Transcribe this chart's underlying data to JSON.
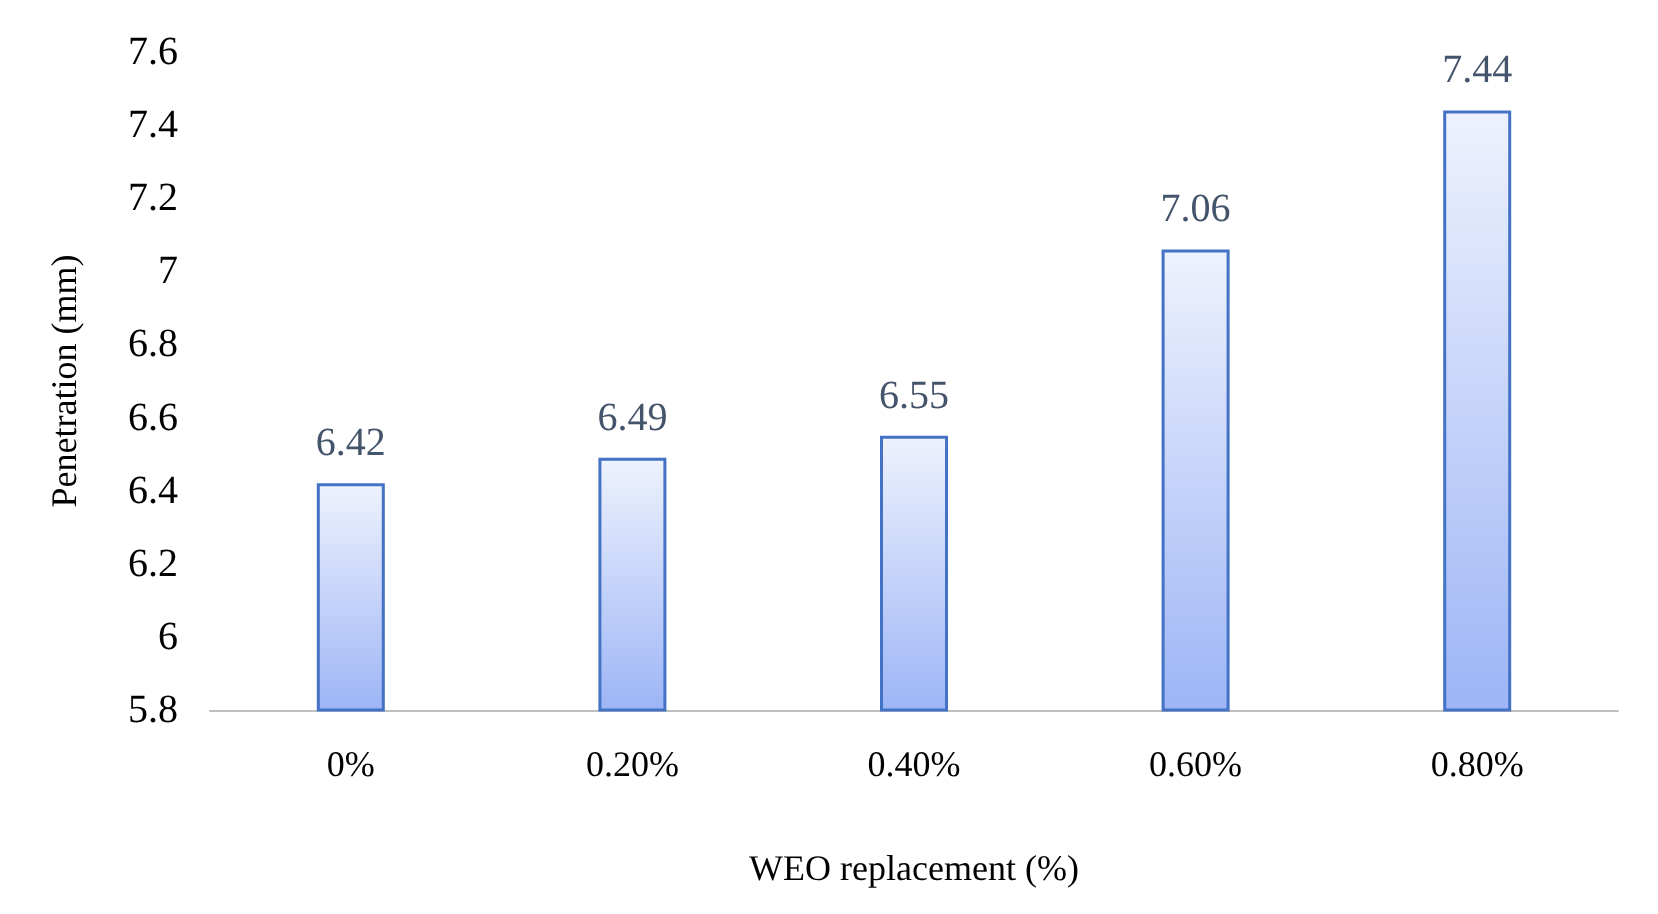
{
  "chart_data": {
    "type": "bar",
    "xlabel": "WEO replacement (%)",
    "ylabel": "Penetration (mm)",
    "categories": [
      "0%",
      "0.20%",
      "0.40%",
      "0.60%",
      "0.80%"
    ],
    "values": [
      6.42,
      6.49,
      6.55,
      7.06,
      7.44
    ],
    "color": "#4472c4",
    "ylim": [
      5.8,
      7.6
    ],
    "yticks": [
      5.8,
      6,
      6.2,
      6.4,
      6.6,
      6.8,
      7,
      7.2,
      7.4,
      7.6
    ],
    "data_labels": true,
    "grid": false
  }
}
